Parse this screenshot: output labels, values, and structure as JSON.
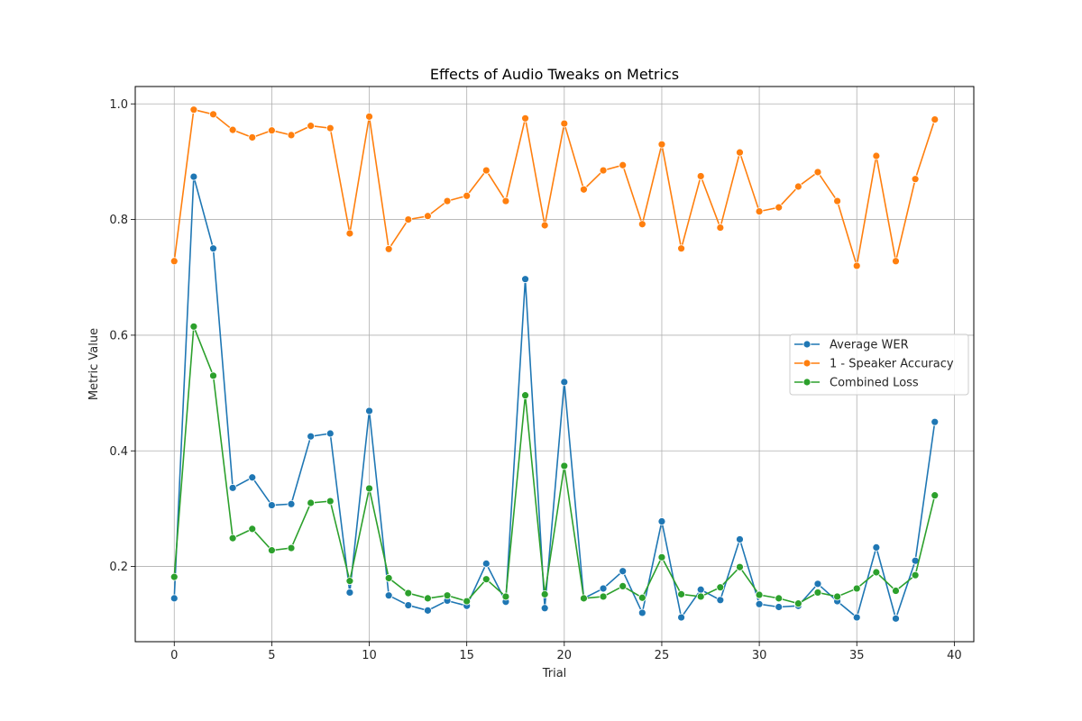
{
  "chart_data": {
    "type": "line",
    "title": "Effects of Audio Tweaks on Metrics",
    "xlabel": "Trial",
    "ylabel": "Metric Value",
    "xlim": [
      -2,
      41
    ],
    "ylim": [
      0.07,
      1.03
    ],
    "xticks": [
      0,
      5,
      10,
      15,
      20,
      25,
      30,
      35,
      40
    ],
    "yticks": [
      0.2,
      0.4,
      0.6,
      0.8,
      1.0
    ],
    "ytick_labels": [
      "0.2",
      "0.4",
      "0.6",
      "0.8",
      "1.0"
    ],
    "grid": true,
    "legend_position": "center-right",
    "x": [
      0,
      1,
      2,
      3,
      4,
      5,
      6,
      7,
      8,
      9,
      10,
      11,
      12,
      13,
      14,
      15,
      16,
      17,
      18,
      19,
      20,
      21,
      22,
      23,
      24,
      25,
      26,
      27,
      28,
      29,
      30,
      31,
      32,
      33,
      34,
      35,
      36,
      37,
      38,
      39
    ],
    "series": [
      {
        "name": "Average WER",
        "color": "#1f77b4",
        "values": [
          0.145,
          0.874,
          0.75,
          0.336,
          0.354,
          0.306,
          0.308,
          0.425,
          0.43,
          0.155,
          0.469,
          0.15,
          0.133,
          0.124,
          0.141,
          0.132,
          0.205,
          0.139,
          0.697,
          0.128,
          0.519,
          0.145,
          0.162,
          0.192,
          0.12,
          0.278,
          0.112,
          0.16,
          0.142,
          0.247,
          0.135,
          0.13,
          0.132,
          0.17,
          0.14,
          0.112,
          0.233,
          0.11,
          0.21,
          0.45
        ]
      },
      {
        "name": "1 - Speaker Accuracy",
        "color": "#ff7f0e",
        "values": [
          0.728,
          0.99,
          0.982,
          0.955,
          0.942,
          0.954,
          0.946,
          0.962,
          0.958,
          0.776,
          0.978,
          0.749,
          0.8,
          0.806,
          0.832,
          0.841,
          0.885,
          0.832,
          0.975,
          0.79,
          0.966,
          0.852,
          0.885,
          0.894,
          0.792,
          0.93,
          0.75,
          0.875,
          0.786,
          0.916,
          0.814,
          0.821,
          0.857,
          0.882,
          0.832,
          0.72,
          0.91,
          0.728,
          0.87,
          0.973
        ]
      },
      {
        "name": "Combined Loss",
        "color": "#2ca02c",
        "values": [
          0.182,
          0.615,
          0.53,
          0.249,
          0.265,
          0.228,
          0.232,
          0.31,
          0.313,
          0.175,
          0.335,
          0.18,
          0.154,
          0.145,
          0.15,
          0.14,
          0.178,
          0.148,
          0.496,
          0.152,
          0.374,
          0.145,
          0.148,
          0.166,
          0.146,
          0.216,
          0.152,
          0.148,
          0.164,
          0.199,
          0.151,
          0.145,
          0.136,
          0.155,
          0.148,
          0.162,
          0.19,
          0.158,
          0.185,
          0.323
        ]
      }
    ]
  }
}
